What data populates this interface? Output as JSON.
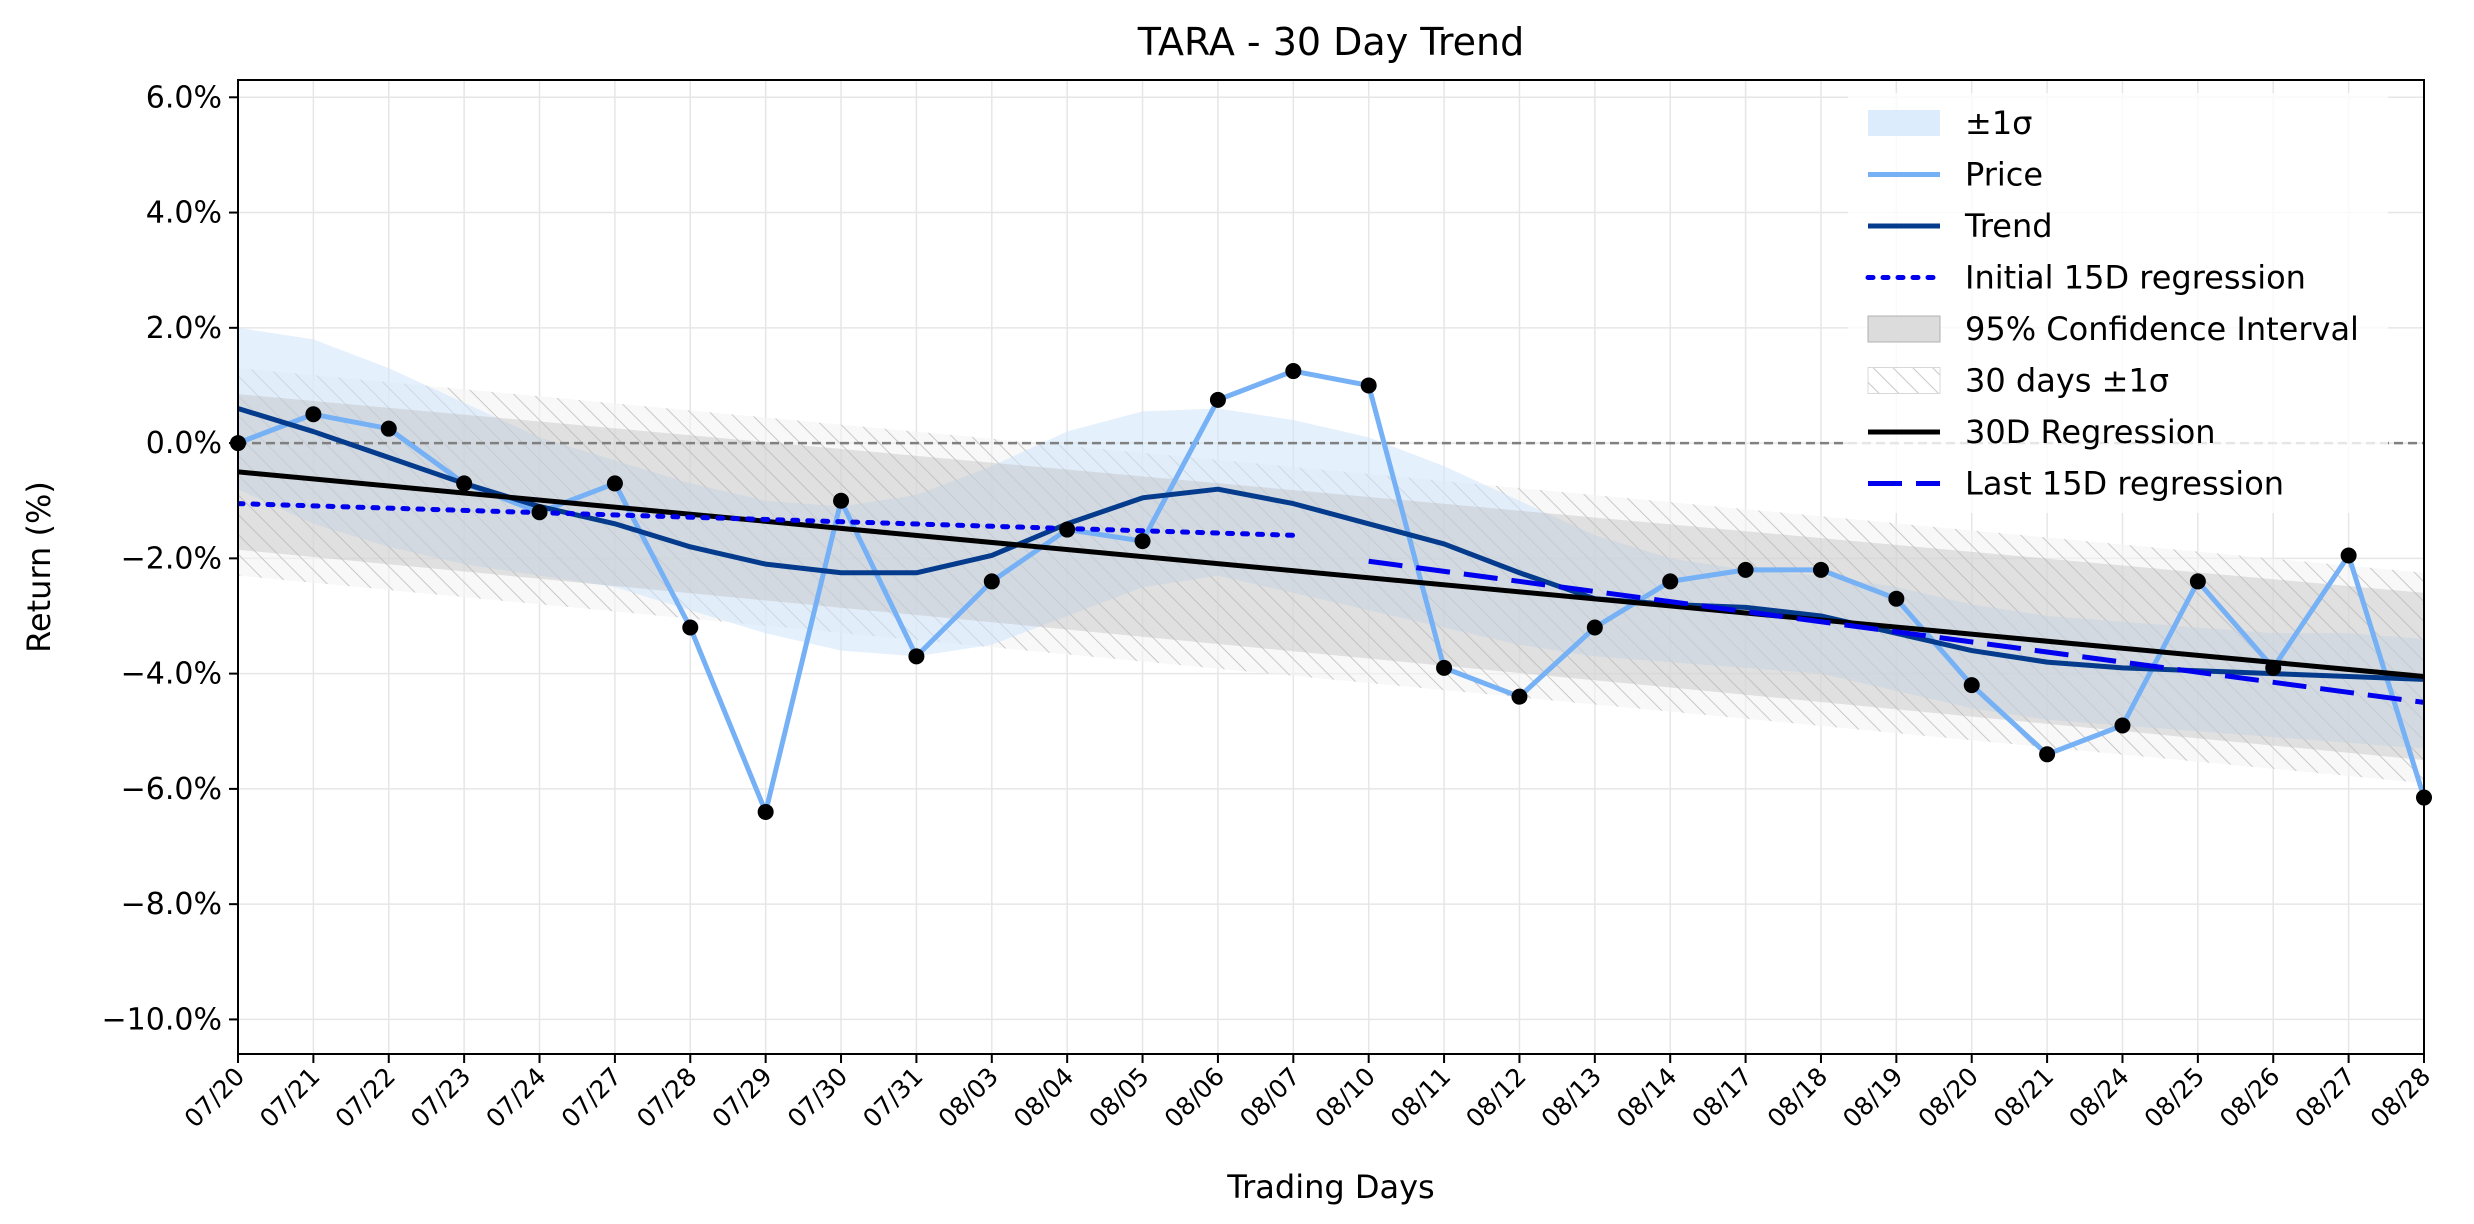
{
  "chart_data": {
    "type": "line",
    "title": "TARA - 30 Day Trend",
    "xlabel": "Trading Days",
    "ylabel": "Return (%)",
    "ylim": [
      -10.6,
      6.3
    ],
    "yticks": [
      6.0,
      4.0,
      2.0,
      0.0,
      -2.0,
      -4.0,
      -6.0,
      -8.0,
      -10.0
    ],
    "ytick_labels": [
      "6.0%",
      "4.0%",
      "2.0%",
      "0.0%",
      "−2.0%",
      "−4.0%",
      "−6.0%",
      "−8.0%",
      "−10.0%"
    ],
    "grid": true,
    "legend_position": "top-right",
    "categories": [
      "07/20",
      "07/21",
      "07/22",
      "07/23",
      "07/24",
      "07/27",
      "07/28",
      "07/29",
      "07/30",
      "07/31",
      "08/03",
      "08/04",
      "08/05",
      "08/06",
      "08/07",
      "08/10",
      "08/11",
      "08/12",
      "08/13",
      "08/14",
      "08/17",
      "08/18",
      "08/19",
      "08/20",
      "08/21",
      "08/24",
      "08/25",
      "08/26",
      "08/27",
      "08/28"
    ],
    "price": [
      0.0,
      0.5,
      0.25,
      -0.7,
      -1.2,
      -0.7,
      -3.2,
      -6.4,
      -1.0,
      -3.7,
      -2.4,
      -1.5,
      -1.7,
      0.75,
      1.25,
      1.0,
      -3.9,
      -4.4,
      -3.2,
      -2.4,
      -2.2,
      -2.2,
      -2.7,
      -4.2,
      -5.4,
      -4.9,
      -2.4,
      -3.9,
      -1.95,
      -6.15
    ],
    "trend": [
      0.6,
      0.2,
      -0.25,
      -0.7,
      -1.1,
      -1.4,
      -1.8,
      -2.1,
      -2.25,
      -2.25,
      -1.95,
      -1.4,
      -0.95,
      -0.8,
      -1.05,
      -1.4,
      -1.75,
      -2.25,
      -2.7,
      -2.8,
      -2.85,
      -3.0,
      -3.3,
      -3.6,
      -3.8,
      -3.9,
      -3.95,
      -4.0,
      -4.05,
      -4.1
    ],
    "sigma_band": {
      "upper": [
        2.0,
        1.8,
        1.3,
        0.7,
        0.1,
        -0.3,
        -0.7,
        -1.0,
        -1.1,
        -0.9,
        -0.4,
        0.2,
        0.55,
        0.6,
        0.4,
        0.1,
        -0.4,
        -1.0,
        -1.6,
        -2.0,
        -2.2,
        -2.3,
        -2.5,
        -2.8,
        -3.0,
        -3.1,
        -3.2,
        -3.3,
        -3.3,
        -3.4
      ],
      "lower": [
        -0.8,
        -1.4,
        -1.8,
        -2.1,
        -2.3,
        -2.5,
        -2.9,
        -3.3,
        -3.6,
        -3.7,
        -3.5,
        -3.0,
        -2.5,
        -2.3,
        -2.6,
        -2.9,
        -3.2,
        -3.5,
        -3.7,
        -3.8,
        -3.9,
        -4.0,
        -4.3,
        -4.6,
        -4.8,
        -4.9,
        -5.0,
        -5.1,
        -5.2,
        -5.3
      ]
    },
    "regression_30d": {
      "start": -0.5,
      "end": -4.05
    },
    "confidence_95": {
      "start_upper": 0.85,
      "start_lower": -1.85,
      "end_upper": -2.6,
      "end_lower": -5.5
    },
    "sigma_30d": {
      "start_upper": 1.3,
      "start_lower": -2.3,
      "end_upper": -2.25,
      "end_lower": -5.9
    },
    "initial_15d_regression": {
      "x_start": 0,
      "x_end": 14,
      "start": -1.05,
      "end": -1.6
    },
    "last_15d_regression": {
      "x_start": 15,
      "x_end": 29,
      "start": -2.05,
      "end": -4.5
    },
    "zero_line": 0.0,
    "legend": [
      {
        "key": "sigma",
        "label": "±1σ"
      },
      {
        "key": "price",
        "label": "Price"
      },
      {
        "key": "trend",
        "label": "Trend"
      },
      {
        "key": "init15",
        "label": "Initial 15D regression"
      },
      {
        "key": "ci95",
        "label": "95% Confidence Interval"
      },
      {
        "key": "sigma30",
        "label": "30 days ±1σ"
      },
      {
        "key": "reg30",
        "label": "30D Regression"
      },
      {
        "key": "last15",
        "label": "Last 15D regression"
      }
    ],
    "colors": {
      "price": "#76b0f5",
      "trend": "#053b8c",
      "markers": "#000000",
      "regression_30d": "#000000",
      "initial_15d": "#0000ee",
      "last_15d": "#0000ee",
      "sigma_fill": "#cfe4fb",
      "ci_fill": "#b8b8b8",
      "hatch": "#c8c8c8",
      "zero_line": "#808080",
      "grid": "#e6e6e6"
    }
  }
}
